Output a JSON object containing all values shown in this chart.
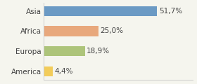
{
  "categories": [
    "America",
    "Europa",
    "Africa",
    "Asia"
  ],
  "values": [
    4.4,
    18.9,
    25.0,
    51.7
  ],
  "labels": [
    "4,4%",
    "18,9%",
    "25,0%",
    "51,7%"
  ],
  "bar_colors": [
    "#f2cc5a",
    "#adc47a",
    "#e8a87c",
    "#6b9ac4"
  ],
  "background_color": "#f5f5ee",
  "xlim": [
    0,
    68
  ],
  "bar_height": 0.5,
  "label_fontsize": 7.5,
  "tick_fontsize": 7.5,
  "figsize": [
    2.8,
    1.2
  ],
  "dpi": 100
}
